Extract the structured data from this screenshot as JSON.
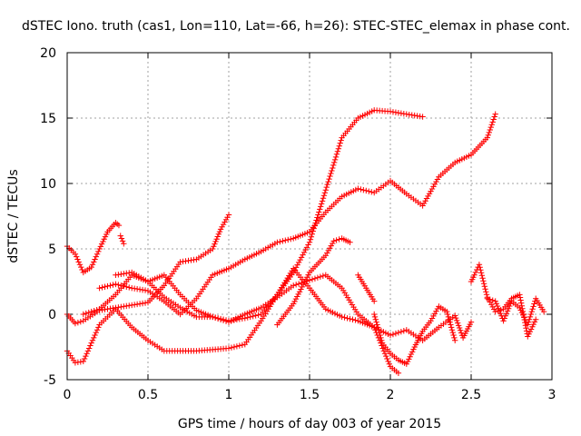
{
  "chart_data": {
    "type": "scatter",
    "title": "dSTEC Iono. truth (cas1, Lon=110, Lat=-66, h=26): STEC-STEC_elemax in phase cont.",
    "xlabel": "GPS time / hours of day 003 of year 2015",
    "ylabel": "dSTEC  / TECUs",
    "xlim": [
      0,
      3
    ],
    "ylim": [
      -5,
      20
    ],
    "x_ticks": [
      0,
      0.5,
      1,
      1.5,
      2,
      2.5,
      3
    ],
    "x_tick_labels": [
      "0",
      "0.5",
      "1",
      "1.5",
      "2",
      "2.5",
      "3"
    ],
    "y_ticks": [
      -5,
      0,
      5,
      10,
      15,
      20
    ],
    "y_tick_labels": [
      "-5",
      "0",
      "5",
      "10",
      "15",
      "20"
    ],
    "grid": true,
    "marker": "+",
    "color": "#ff0000",
    "series": [
      {
        "x": [
          0,
          0.05,
          0.1,
          0.15,
          0.2,
          0.25,
          0.3,
          0.32
        ],
        "y": [
          5.2,
          4.6,
          3.2,
          3.6,
          5.0,
          6.3,
          7.0,
          6.8
        ]
      },
      {
        "x": [
          0.33,
          0.35
        ],
        "y": [
          6.0,
          5.4
        ]
      },
      {
        "x": [
          0,
          0.05,
          0.1,
          0.2,
          0.3,
          0.4,
          0.5,
          0.6,
          0.7,
          0.8,
          0.9,
          1.0,
          1.1,
          1.2,
          1.3,
          1.4,
          1.5,
          1.6,
          1.7,
          1.8,
          1.9,
          2.0,
          2.05,
          2.1,
          2.15,
          2.2
        ],
        "y": [
          -2.8,
          -3.7,
          -3.6,
          -0.8,
          0.4,
          -1.0,
          -2.0,
          -2.8,
          -2.8,
          -2.8,
          -2.7,
          -2.6,
          -2.3,
          -0.5,
          1.5,
          3.2,
          5.5,
          9.5,
          13.5,
          15.0,
          15.6,
          15.5,
          15.4,
          15.3,
          15.2,
          15.1
        ]
      },
      {
        "x": [
          0,
          0.05,
          0.1,
          0.2,
          0.3,
          0.4,
          0.5,
          0.6,
          0.7,
          0.8,
          0.9,
          0.95,
          1.0
        ],
        "y": [
          0.0,
          -0.7,
          -0.5,
          0.3,
          0.5,
          0.7,
          0.9,
          2.2,
          4.0,
          4.2,
          5.0,
          6.5,
          7.6
        ]
      },
      {
        "x": [
          0.2,
          0.3,
          0.4,
          0.5,
          0.6,
          0.7,
          0.8,
          0.9,
          1.0,
          1.1,
          1.2,
          1.3,
          1.4,
          1.5,
          1.6,
          1.7,
          1.8,
          1.9,
          2.0,
          2.1,
          2.2,
          2.3,
          2.4,
          2.5,
          2.6,
          2.65
        ],
        "y": [
          2.0,
          2.3,
          2.0,
          1.8,
          1.0,
          0.0,
          1.2,
          3.0,
          3.5,
          4.2,
          4.8,
          5.5,
          5.8,
          6.3,
          7.8,
          9.0,
          9.6,
          9.3,
          10.2,
          9.2,
          8.3,
          10.5,
          11.6,
          12.2,
          13.5,
          15.3
        ]
      },
      {
        "x": [
          0.3,
          0.4,
          0.5,
          0.6,
          0.7,
          0.8,
          0.9,
          1.0,
          1.1,
          1.2,
          1.3,
          1.4,
          1.5,
          1.6,
          1.7,
          1.8,
          1.9,
          2.0,
          2.05
        ],
        "y": [
          3.0,
          3.2,
          2.5,
          3.0,
          1.5,
          0.3,
          -0.2,
          -0.6,
          0.0,
          0.5,
          1.3,
          2.2,
          2.6,
          3.0,
          2.0,
          0.0,
          -1.0,
          -4.0,
          -4.5
        ]
      },
      {
        "x": [
          0.1,
          0.2,
          0.3,
          0.4,
          0.5,
          0.6,
          0.7,
          0.8,
          0.9,
          1.0,
          1.1,
          1.2,
          1.3,
          1.4,
          1.5,
          1.6,
          1.7,
          1.8,
          1.9,
          2.0,
          2.1,
          2.2,
          2.3,
          2.4,
          2.45,
          2.5
        ],
        "y": [
          0.0,
          0.4,
          1.5,
          3.0,
          2.5,
          1.3,
          0.5,
          -0.2,
          -0.2,
          -0.5,
          -0.3,
          0.0,
          1.5,
          3.5,
          2.0,
          0.4,
          -0.2,
          -0.5,
          -1.0,
          -1.6,
          -1.2,
          -2.0,
          -1.0,
          -0.1,
          -1.8,
          -0.6
        ]
      },
      {
        "x": [
          1.3,
          1.4,
          1.5,
          1.6,
          1.65,
          1.7,
          1.75
        ],
        "y": [
          -0.8,
          0.8,
          3.2,
          4.5,
          5.6,
          5.8,
          5.5
        ]
      },
      {
        "x": [
          1.8,
          1.85,
          1.9
        ],
        "y": [
          3.0,
          2.0,
          1.0
        ]
      },
      {
        "x": [
          1.9,
          1.95,
          2.0,
          2.05,
          2.1,
          2.15,
          2.2,
          2.25,
          2.3,
          2.35,
          2.4
        ],
        "y": [
          0.0,
          -2.2,
          -3.0,
          -3.5,
          -3.8,
          -2.5,
          -1.3,
          -0.5,
          0.6,
          0.2,
          -2.0
        ]
      },
      {
        "x": [
          2.5,
          2.52,
          2.55,
          2.6,
          2.65,
          2.7,
          2.75,
          2.8,
          2.85,
          2.9
        ],
        "y": [
          2.5,
          3.0,
          3.8,
          1.3,
          0.2,
          0.4,
          1.2,
          1.5,
          -1.7,
          -0.4
        ]
      },
      {
        "x": [
          2.6,
          2.65,
          2.7,
          2.75,
          2.8,
          2.85,
          2.9,
          2.95
        ],
        "y": [
          1.2,
          1.0,
          -0.5,
          1.0,
          0.5,
          -0.8,
          1.2,
          0.2
        ]
      }
    ]
  }
}
